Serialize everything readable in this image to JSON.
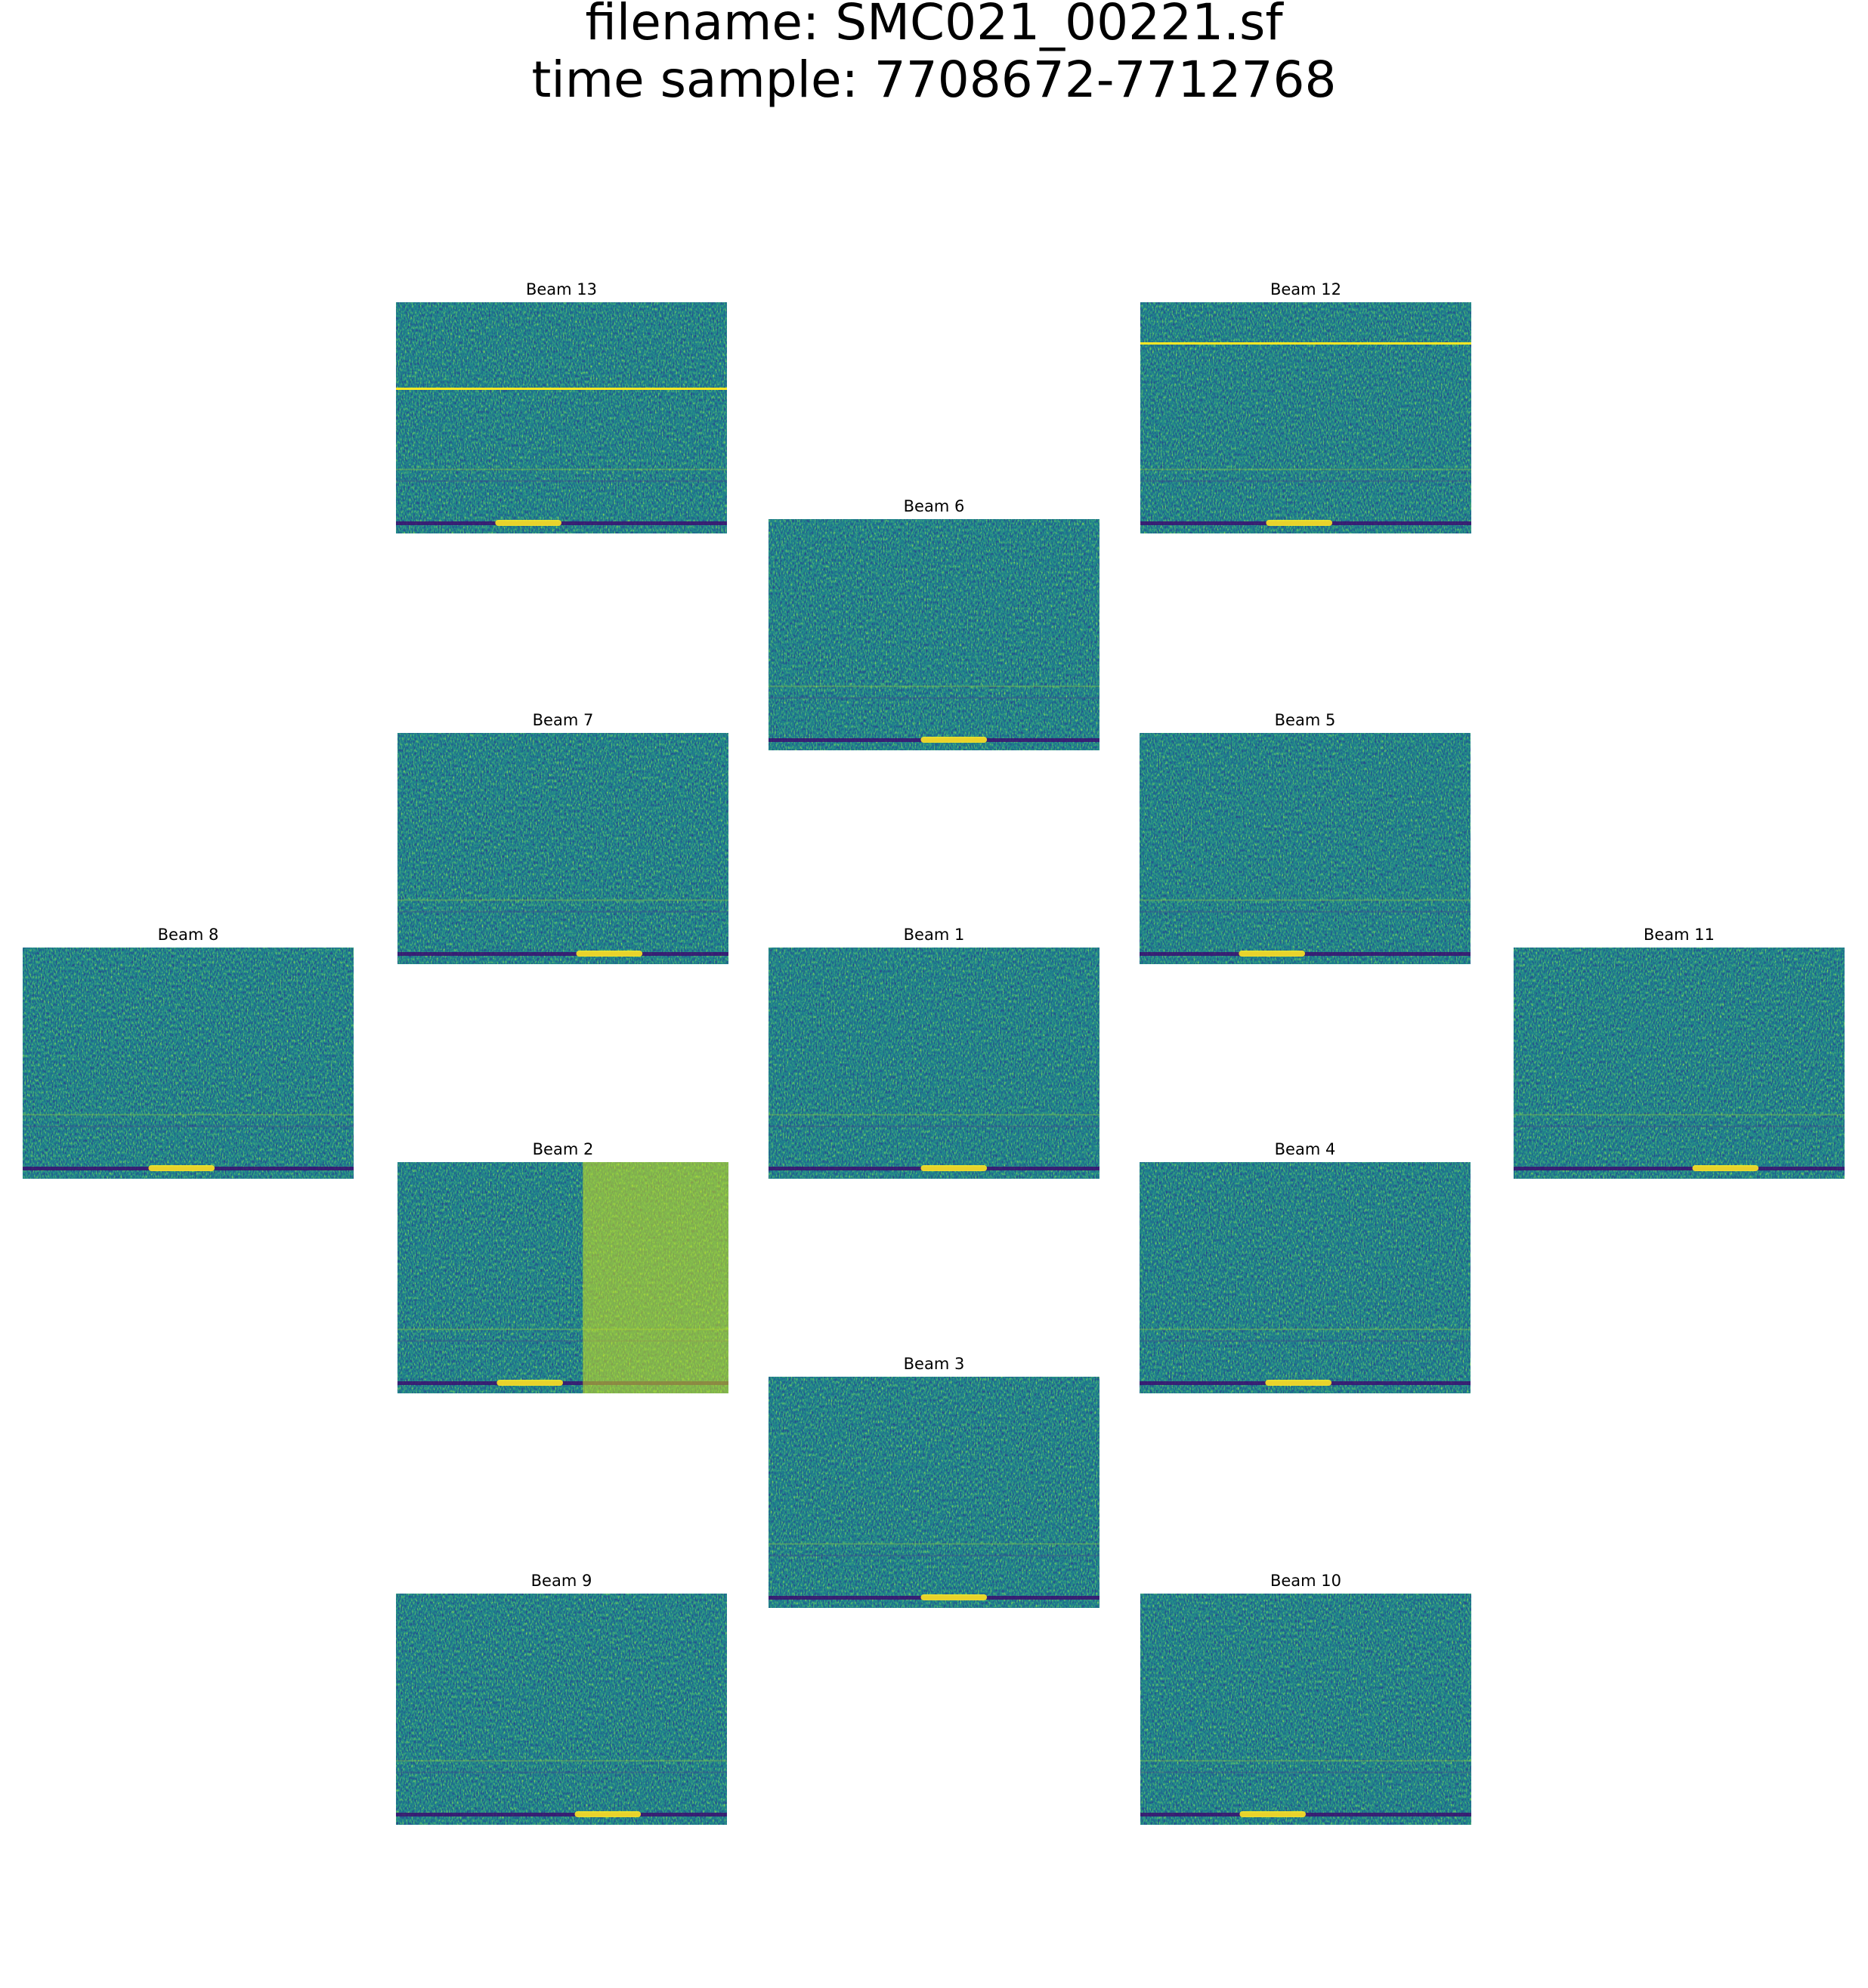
{
  "title": {
    "line1": "filename: SMC021_00221.sf",
    "line2": "time sample: 7708672-7712768"
  },
  "panels": [
    "Beam 13",
    "Beam 12",
    "Beam 6",
    "Beam 7",
    "Beam 5",
    "Beam 8",
    "Beam 1",
    "Beam 11",
    "Beam 2",
    "Beam 4",
    "Beam 3",
    "Beam 9",
    "Beam 10"
  ]
}
